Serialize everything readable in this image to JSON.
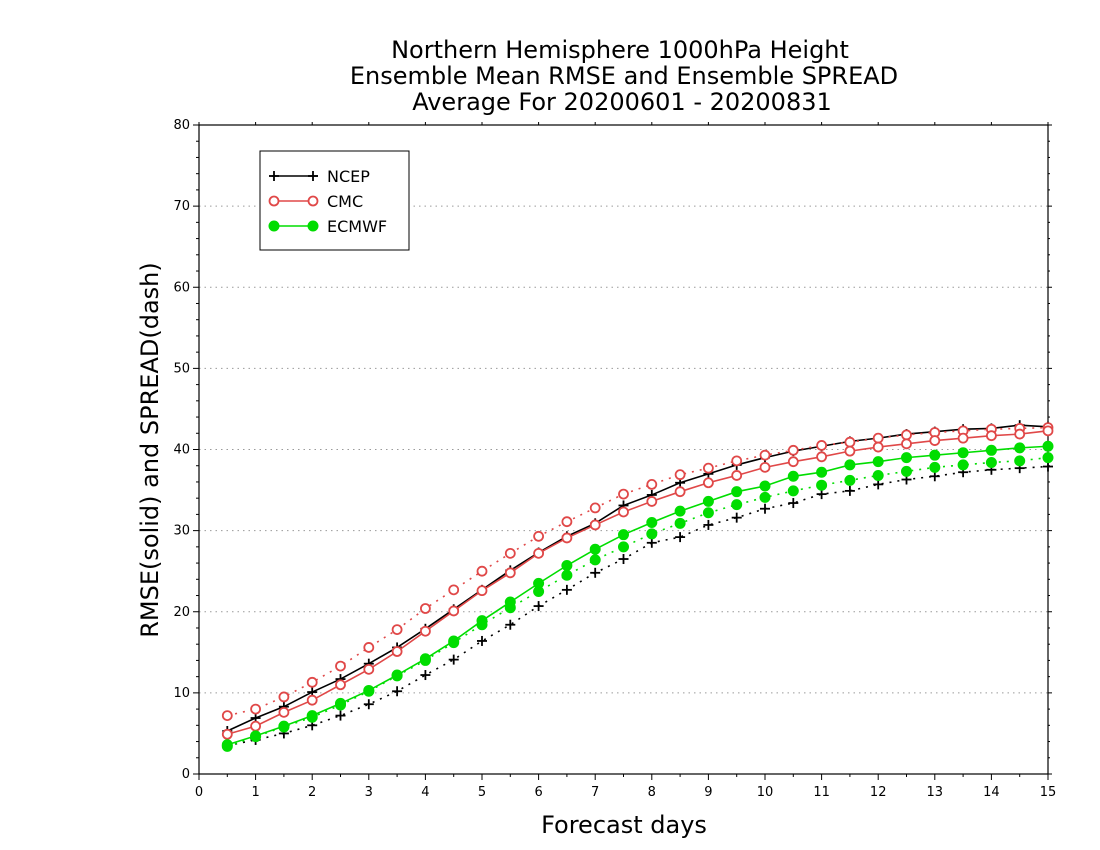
{
  "chart_data": {
    "type": "line",
    "title": [
      "Northern Hemisphere 1000hPa Height",
      "Ensemble Mean RMSE and Ensemble SPREAD",
      "Average For 20200601 - 20200831"
    ],
    "xlabel": "Forecast days",
    "ylabel": "RMSE(solid) and SPREAD(dash)",
    "xlim": [
      0,
      15
    ],
    "ylim": [
      0,
      80
    ],
    "xticks": [
      "0",
      "1",
      "2",
      "3",
      "4",
      "5",
      "6",
      "7",
      "8",
      "9",
      "10",
      "11",
      "12",
      "13",
      "14",
      "15"
    ],
    "yticks": [
      "0",
      "10",
      "20",
      "30",
      "40",
      "50",
      "60",
      "70",
      "80"
    ],
    "grid": "horizontal dotted",
    "legend_position": "top-left",
    "x": [
      0.5,
      1,
      1.5,
      2,
      2.5,
      3,
      3.5,
      4,
      4.5,
      5,
      5.5,
      6,
      6.5,
      7,
      7.5,
      8,
      8.5,
      9,
      9.5,
      10,
      10.5,
      11,
      11.5,
      12,
      12.5,
      13,
      13.5,
      14,
      14.5,
      15
    ],
    "series": [
      {
        "name": "NCEP",
        "color": "#000000",
        "marker": "plus",
        "rmse": [
          5.3,
          6.9,
          8.3,
          10.1,
          11.7,
          13.6,
          15.6,
          17.9,
          20.3,
          22.7,
          25.1,
          27.3,
          29.3,
          30.9,
          33.1,
          34.4,
          35.9,
          37.0,
          38.1,
          39.0,
          39.8,
          40.4,
          41.0,
          41.4,
          41.9,
          42.2,
          42.5,
          42.6,
          43.0,
          42.8
        ],
        "spread": [
          3.5,
          4.2,
          5.0,
          6.0,
          7.2,
          8.6,
          10.2,
          12.2,
          14.1,
          16.4,
          18.4,
          20.7,
          22.7,
          24.8,
          26.5,
          28.5,
          29.2,
          30.7,
          31.6,
          32.7,
          33.4,
          34.5,
          34.9,
          35.7,
          36.3,
          36.7,
          37.2,
          37.5,
          37.7,
          37.9
        ]
      },
      {
        "name": "CMC",
        "color": "#e04848",
        "marker": "open-circle",
        "rmse": [
          4.9,
          5.9,
          7.6,
          9.1,
          11.0,
          12.9,
          15.1,
          17.6,
          20.1,
          22.6,
          24.8,
          27.2,
          29.1,
          30.7,
          32.3,
          33.6,
          34.8,
          35.9,
          36.8,
          37.8,
          38.5,
          39.1,
          39.8,
          40.3,
          40.7,
          41.1,
          41.4,
          41.7,
          41.9,
          42.3
        ],
        "spread": [
          7.2,
          8.0,
          9.5,
          11.3,
          13.3,
          15.6,
          17.8,
          20.4,
          22.7,
          25.0,
          27.2,
          29.3,
          31.1,
          32.8,
          34.5,
          35.7,
          36.9,
          37.7,
          38.6,
          39.3,
          39.9,
          40.5,
          40.9,
          41.4,
          41.8,
          42.1,
          42.3,
          42.5,
          42.6,
          42.7
        ]
      },
      {
        "name": "ECMWF",
        "color": "#00dd00",
        "marker": "filled-circle",
        "rmse": [
          3.6,
          4.7,
          5.9,
          7.2,
          8.7,
          10.3,
          12.2,
          14.2,
          16.4,
          18.9,
          21.2,
          23.5,
          25.7,
          27.7,
          29.5,
          31.0,
          32.4,
          33.6,
          34.8,
          35.5,
          36.7,
          37.2,
          38.1,
          38.5,
          39.0,
          39.3,
          39.6,
          39.9,
          40.2,
          40.4
        ],
        "spread": [
          3.4,
          4.6,
          5.8,
          7.0,
          8.5,
          10.2,
          12.1,
          14.0,
          16.2,
          18.4,
          20.5,
          22.5,
          24.5,
          26.4,
          28.0,
          29.6,
          30.9,
          32.2,
          33.2,
          34.1,
          34.9,
          35.6,
          36.2,
          36.8,
          37.3,
          37.8,
          38.1,
          38.4,
          38.6,
          39.0
        ]
      }
    ]
  }
}
